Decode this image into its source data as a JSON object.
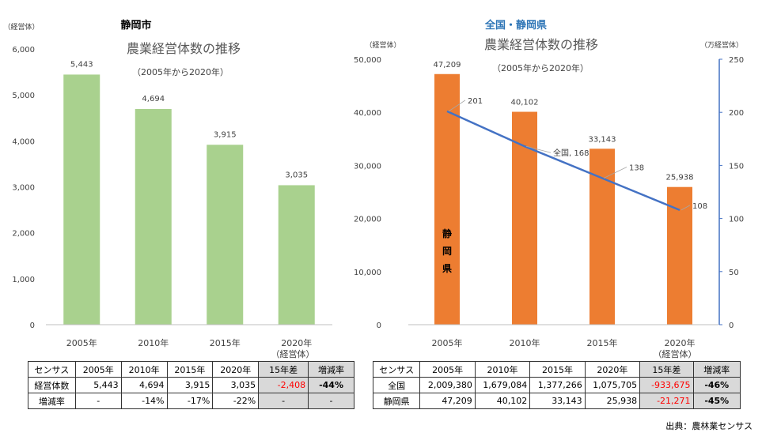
{
  "colors": {
    "left_bar": "#a9d18e",
    "right_bar": "#ed7d31",
    "line": "#4472c4",
    "text": "#404040",
    "red": "#ff0000"
  },
  "chart_data": [
    {
      "type": "bar",
      "region": "静岡市",
      "title": "農業経営体数の推移",
      "subtitle": "（2005年から2020年）",
      "ylabel": "（経営体）",
      "xlabel": "（経営体）",
      "categories": [
        "2005年",
        "2010年",
        "2015年",
        "2020年"
      ],
      "values": [
        5443,
        4694,
        3915,
        3035
      ],
      "data_labels": [
        "5,443",
        "4,694",
        "3,915",
        "3,035"
      ],
      "ylim": [
        0,
        6000
      ],
      "yticks": [
        "0",
        "1,000",
        "2,000",
        "3,000",
        "4,000",
        "5,000",
        "6,000"
      ]
    },
    {
      "type": "bar+line",
      "region": "全国・静岡県",
      "title": "農業経営体数の推移",
      "subtitle": "（2005年から2020年）",
      "ylabel_left": "（経営体）",
      "ylabel_right": "（万経営体）",
      "xlabel": "（経営体）",
      "categories": [
        "2005年",
        "2010年",
        "2015年",
        "2020年"
      ],
      "series": [
        {
          "name": "静岡県",
          "type": "bar",
          "axis": "left",
          "values": [
            47209,
            40102,
            33143,
            25938
          ],
          "data_labels": [
            "47,209",
            "40,102",
            "33,143",
            "25,938"
          ],
          "bar_label_chars": [
            "静",
            "岡",
            "県"
          ]
        },
        {
          "name": "全国",
          "type": "line",
          "axis": "right",
          "values": [
            201,
            168,
            138,
            108
          ],
          "data_labels": [
            "201",
            "全国, 168",
            "138",
            "108"
          ]
        }
      ],
      "ylim_left": [
        0,
        50000
      ],
      "yticks_left": [
        "0",
        "10,000",
        "20,000",
        "30,000",
        "40,000",
        "50,000"
      ],
      "ylim_right": [
        0,
        250
      ],
      "yticks_right": [
        "0",
        "50",
        "100",
        "150",
        "200",
        "250"
      ]
    }
  ],
  "tables": {
    "left": {
      "headers": [
        "センサス",
        "2005年",
        "2010年",
        "2015年",
        "2020年",
        "15年差",
        "増減率"
      ],
      "rows": [
        [
          "経営体数",
          "5,443",
          "4,694",
          "3,915",
          "3,035",
          "-2,408",
          "-44%"
        ],
        [
          "増減率",
          "-",
          "-14%",
          "-17%",
          "-22%",
          "-",
          "-"
        ]
      ]
    },
    "right": {
      "headers": [
        "センサス",
        "2005年",
        "2010年",
        "2015年",
        "2020年",
        "15年差",
        "増減率"
      ],
      "rows": [
        [
          "全国",
          "2,009,380",
          "1,679,084",
          "1,377,266",
          "1,075,705",
          "-933,675",
          "-46%"
        ],
        [
          "静岡県",
          "47,209",
          "40,102",
          "33,143",
          "25,938",
          "-21,271",
          "-45%"
        ]
      ]
    }
  },
  "source": "出典：農林業センサス"
}
